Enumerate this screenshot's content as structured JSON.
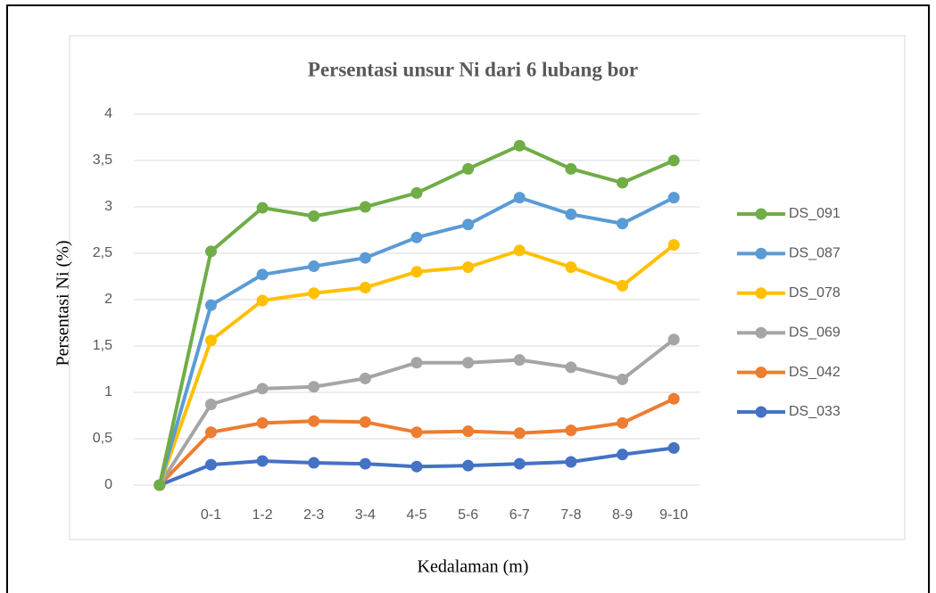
{
  "chart_data": {
    "type": "line",
    "title": "Persentasi unsur Ni dari 6 lubang bor",
    "x_label": "Kedalaman (m)",
    "y_label": "Persentasi Ni (%)",
    "categories": [
      null,
      "0-1",
      "1-2",
      "2-3",
      "3-4",
      "4-5",
      "5-6",
      "6-7",
      "7-8",
      "8-9",
      "9-10"
    ],
    "series": [
      {
        "name": "DS_091",
        "color": "#70ad47",
        "values": [
          0,
          2.52,
          2.99,
          2.9,
          3.0,
          3.15,
          3.41,
          3.66,
          3.41,
          3.26,
          3.5
        ]
      },
      {
        "name": "DS_087",
        "color": "#5b9bd5",
        "values": [
          0,
          1.94,
          2.27,
          2.36,
          2.45,
          2.67,
          2.81,
          3.1,
          2.92,
          2.82,
          3.1
        ]
      },
      {
        "name": "DS_078",
        "color": "#ffc000",
        "values": [
          0,
          1.56,
          1.99,
          2.07,
          2.13,
          2.3,
          2.35,
          2.53,
          2.35,
          2.15,
          2.59
        ]
      },
      {
        "name": "DS_069",
        "color": "#a5a5a5",
        "values": [
          0,
          0.87,
          1.04,
          1.06,
          1.15,
          1.32,
          1.32,
          1.35,
          1.27,
          1.14,
          1.57
        ]
      },
      {
        "name": "DS_042",
        "color": "#ed7d31",
        "values": [
          0,
          0.57,
          0.67,
          0.69,
          0.68,
          0.57,
          0.58,
          0.56,
          0.59,
          0.67,
          0.93
        ]
      },
      {
        "name": "DS_033",
        "color": "#4472c4",
        "values": [
          0,
          0.22,
          0.26,
          0.24,
          0.23,
          0.2,
          0.21,
          0.23,
          0.25,
          0.33,
          0.4
        ]
      }
    ],
    "ylim": [
      0,
      4
    ],
    "yticks": [
      0,
      {
        "value": 0.5,
        "label": "0,5"
      },
      1,
      {
        "value": 1.5,
        "label": "1,5"
      },
      2,
      {
        "value": 2.5,
        "label": "2,5"
      },
      3,
      {
        "value": 3.5,
        "label": "3,5"
      },
      4
    ],
    "grid": true,
    "legend": "right"
  }
}
